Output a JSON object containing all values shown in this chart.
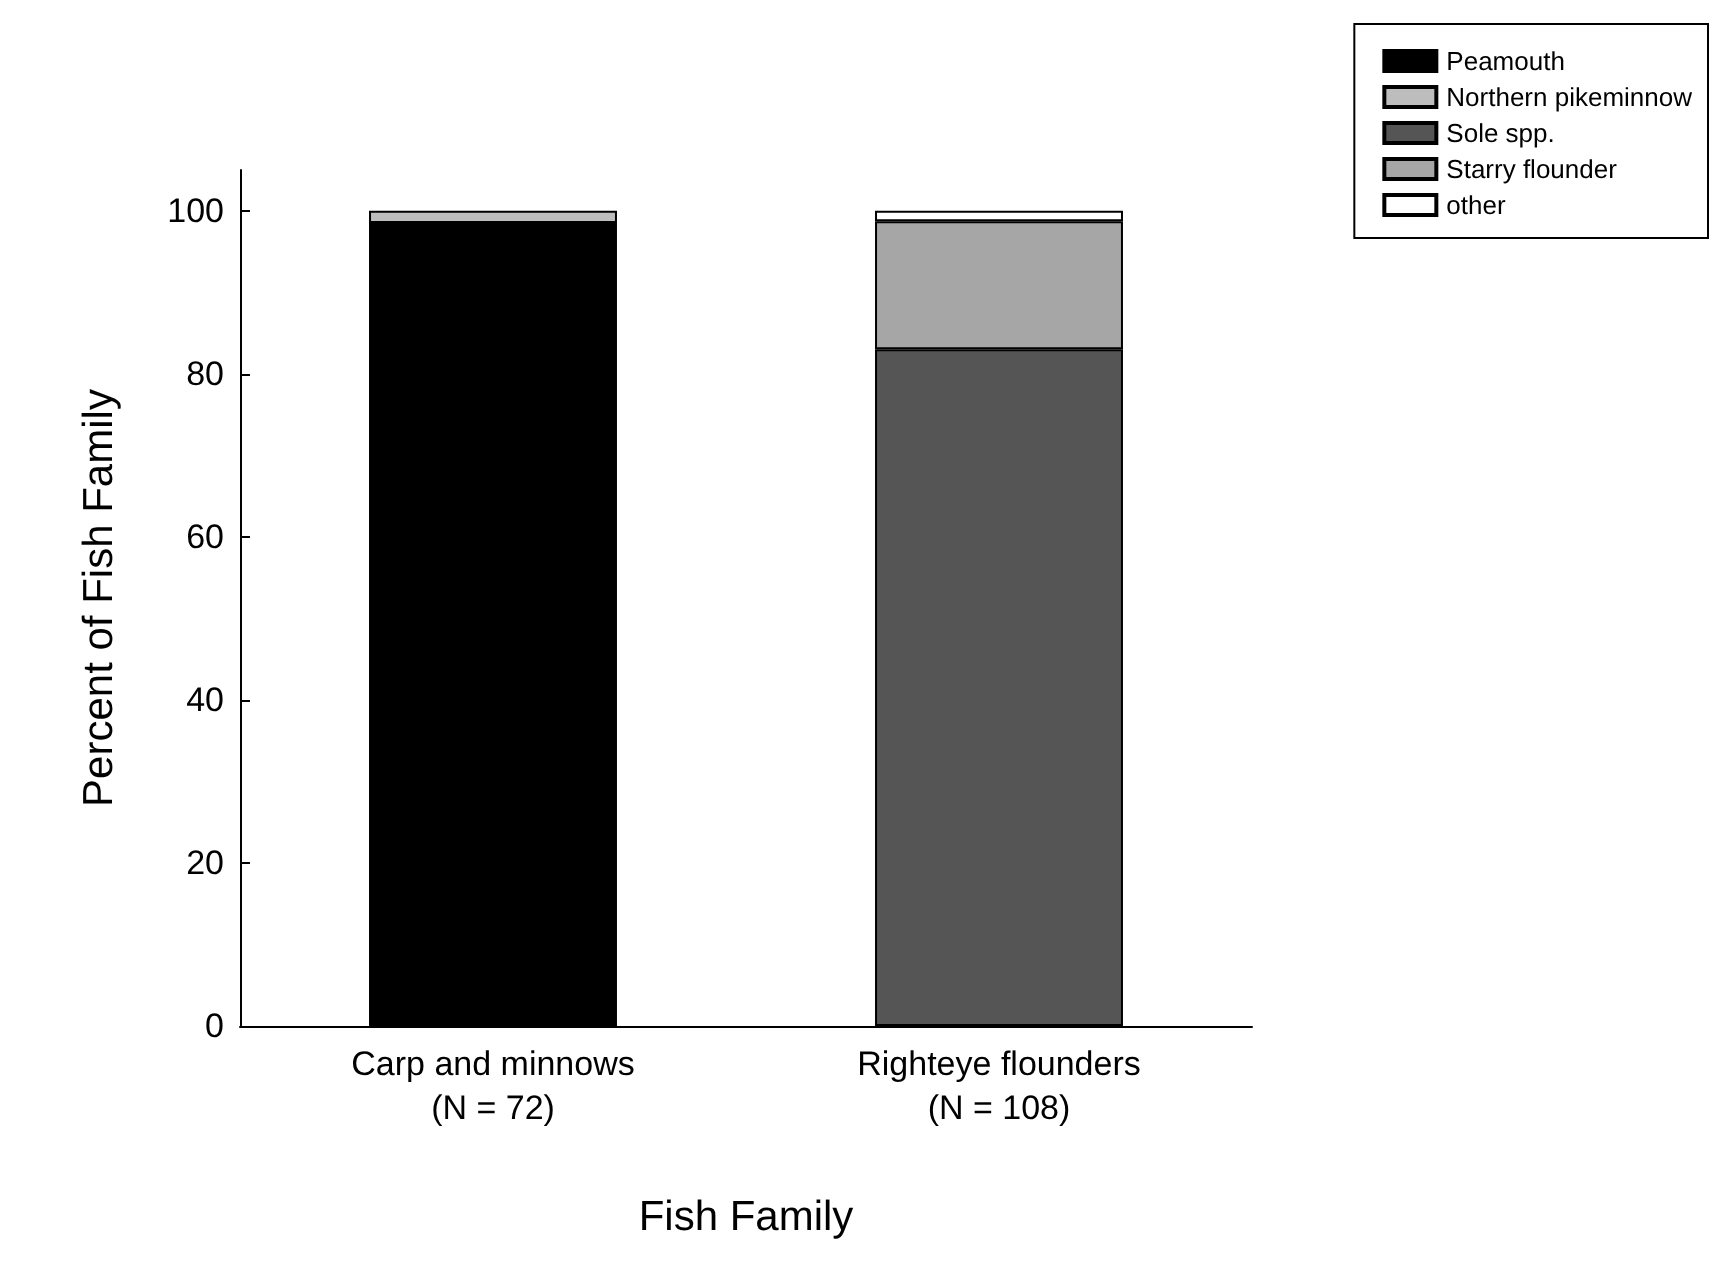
{
  "chart_data": {
    "type": "bar",
    "stacked": true,
    "xlabel": "Fish Family",
    "ylabel": "Percent of Fish Family",
    "categories": [
      "Carp and minnows\n(N = 72)",
      "Righteye flounders\n(N = 108)"
    ],
    "series": [
      {
        "name": "Peamouth",
        "color": "#000000",
        "values": [
          98.5,
          null
        ]
      },
      {
        "name": "Northern pikeminnow",
        "color": "#bdbdbd",
        "values": [
          1.5,
          null
        ]
      },
      {
        "name": "Sole spp.",
        "color": "#555555",
        "values": [
          null,
          83
        ]
      },
      {
        "name": "Starry flounder",
        "color": "#a6a6a6",
        "values": [
          null,
          15.7
        ]
      },
      {
        "name": "other",
        "color": "#ffffff",
        "values": [
          null,
          1.3
        ]
      }
    ],
    "ylim": [
      0,
      105
    ],
    "yticks": [
      0,
      20,
      40,
      60,
      80,
      100
    ],
    "grid": false,
    "legend": "top right"
  }
}
